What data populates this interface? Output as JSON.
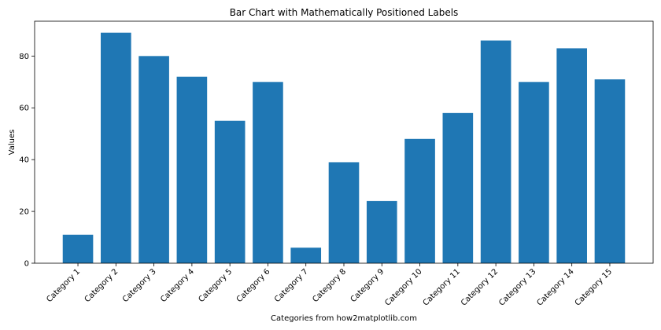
{
  "chart_data": {
    "type": "bar",
    "title": "Bar Chart with Mathematically Positioned Labels",
    "xlabel": "Categories from how2matplotlib.com",
    "ylabel": "Values",
    "categories": [
      "Category 1",
      "Category 2",
      "Category 3",
      "Category 4",
      "Category 5",
      "Category 6",
      "Category 7",
      "Category 8",
      "Category 9",
      "Category 10",
      "Category 11",
      "Category 12",
      "Category 13",
      "Category 14",
      "Category 15"
    ],
    "values": [
      11,
      89,
      80,
      72,
      55,
      70,
      6,
      39,
      24,
      48,
      58,
      86,
      70,
      83,
      71
    ],
    "ylim": [
      0,
      93.45
    ],
    "yticks": [
      0,
      20,
      40,
      60,
      80
    ],
    "grid": false,
    "bar_color": "#1f77b4"
  }
}
